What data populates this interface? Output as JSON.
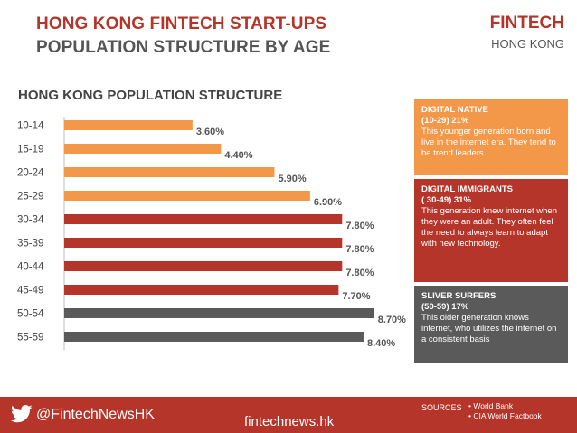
{
  "header": {
    "title_line1": "HONG KONG FINTECH START-UPS",
    "title_line2": "POPULATION STRUCTURE BY AGE",
    "brand_main": "FINTECH",
    "brand_sub": "HONG KONG"
  },
  "chart_data": {
    "type": "bar",
    "orientation": "horizontal",
    "title": "HONG KONG POPULATION STRUCTURE",
    "categories": [
      "10-14",
      "15-19",
      "20-24",
      "25-29",
      "30-34",
      "35-39",
      "40-44",
      "45-49",
      "50-54",
      "55-59"
    ],
    "values": [
      3.6,
      4.4,
      5.9,
      6.9,
      7.8,
      7.8,
      7.8,
      7.7,
      8.7,
      8.4
    ],
    "value_labels": [
      "3.60%",
      "4.40%",
      "5.90%",
      "6.90%",
      "7.80%",
      "7.80%",
      "7.80%",
      "7.70%",
      "8.70%",
      "8.40%"
    ],
    "groups": [
      "digital-native",
      "digital-native",
      "digital-native",
      "digital-native",
      "digital-immigrant",
      "digital-immigrant",
      "digital-immigrant",
      "digital-immigrant",
      "silver-surfer",
      "silver-surfer"
    ],
    "colors": {
      "digital-native": "#f39848",
      "digital-immigrant": "#b6352a",
      "silver-surfer": "#5a5a5a"
    },
    "xlim": [
      0,
      10
    ],
    "grid": false,
    "xlabel": "",
    "ylabel": ""
  },
  "panels": [
    {
      "heading1": "DIGITAL NATIVE",
      "heading2": "(10-29) 21%",
      "body": "This younger generation born and live in the internet era. They tend to be trend leaders.",
      "color": "#f39848"
    },
    {
      "heading1": "DIGITAL IMMIGRANTS",
      "heading2": "( 30-49) 31%",
      "body": "This generation knew internet when they were an adult. They often feel the need to always learn to adapt with new technology.",
      "color": "#b6352a"
    },
    {
      "heading1": "SLIVER SURFERS",
      "heading2": "(50-59) 17%",
      "body": "This older generation knows internet, who utilizes the internet on a consistent basis",
      "color": "#5a5a5a"
    }
  ],
  "footer": {
    "twitter_icon": "twitter-bird-icon",
    "handle": "@FintechNewsHK",
    "site": "fintechnews.hk",
    "sources_label": "SOURCES",
    "sources": [
      "World Bank",
      "CIA World Factbook"
    ]
  }
}
